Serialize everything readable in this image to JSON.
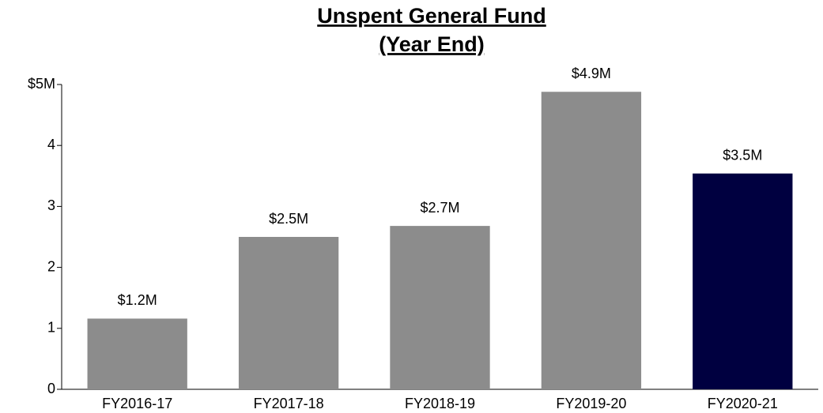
{
  "chart_data": {
    "type": "bar",
    "title": [
      "Unspent General Fund",
      "(Year End)"
    ],
    "categories": [
      "FY2016-17",
      "FY2017-18",
      "FY2018-19",
      "FY2019-20",
      "FY2020-21"
    ],
    "values": [
      1.16,
      2.5,
      2.68,
      4.88,
      3.54
    ],
    "value_labels": [
      "$1.2M",
      "$2.5M",
      "$2.7M",
      "$4.9M",
      "$3.5M"
    ],
    "colors": [
      "#8c8c8c",
      "#8c8c8c",
      "#8c8c8c",
      "#8c8c8c",
      "#000040"
    ],
    "ylim": [
      0,
      5
    ],
    "yticks": [
      0,
      1,
      2,
      3,
      4,
      {
        "value": 5,
        "label": "$5M"
      }
    ],
    "grid": false
  }
}
